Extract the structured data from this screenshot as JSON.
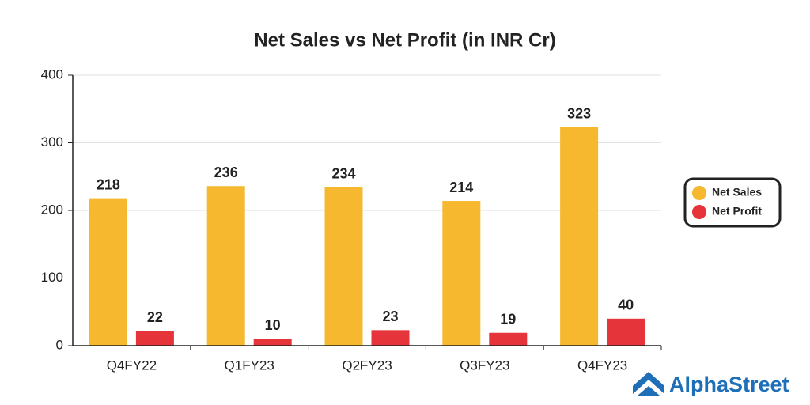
{
  "chart_data": {
    "type": "bar",
    "title": "Net Sales vs Net Profit (in INR Cr)",
    "categories": [
      "Q4FY22",
      "Q1FY23",
      "Q2FY23",
      "Q3FY23",
      "Q4FY23"
    ],
    "series": [
      {
        "name": "Net Sales",
        "color": "#f5b82e",
        "values": [
          218,
          236,
          234,
          214,
          323
        ]
      },
      {
        "name": "Net Profit",
        "color": "#e5343a",
        "values": [
          22,
          10,
          23,
          19,
          40
        ]
      }
    ],
    "ylim": [
      0,
      400
    ],
    "yticks": [
      0,
      100,
      200,
      300,
      400
    ],
    "grid": true,
    "legend": "right"
  },
  "logo": {
    "text": "AlphaStreet"
  }
}
